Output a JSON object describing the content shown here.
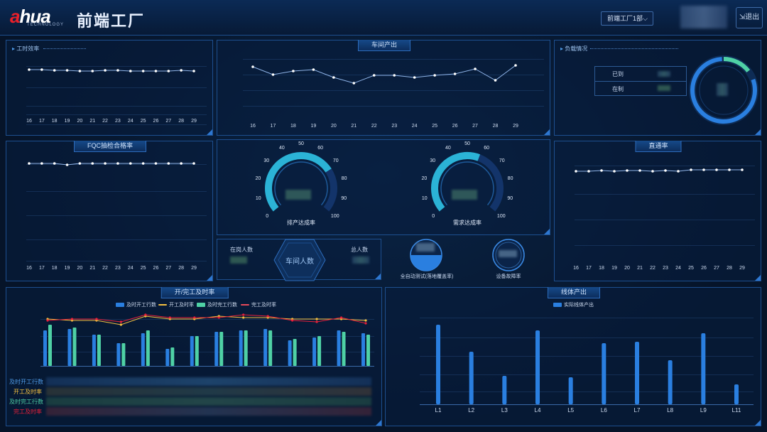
{
  "header": {
    "logo_a": "a",
    "logo_rest": "hua",
    "logo_sub": "TECHNOLOGY",
    "title": "前端工厂",
    "dept_select": "前端工厂1部",
    "logout": "退出"
  },
  "panels": {
    "efficiency": {
      "title": "工时效率",
      "days": [
        "16",
        "17",
        "18",
        "19",
        "20",
        "21",
        "22",
        "23",
        "24",
        "25",
        "26",
        "27",
        "28",
        "29"
      ]
    },
    "output": {
      "title": "车间产出",
      "days": [
        "16",
        "17",
        "18",
        "19",
        "20",
        "21",
        "22",
        "23",
        "24",
        "25",
        "26",
        "27",
        "28",
        "29"
      ]
    },
    "load": {
      "title": "负载情况",
      "arrived": "已到",
      "in_process": "在制"
    },
    "fqc": {
      "title": "FQC抽检合格率",
      "days": [
        "16",
        "17",
        "18",
        "19",
        "20",
        "21",
        "22",
        "23",
        "24",
        "25",
        "26",
        "27",
        "28",
        "29"
      ]
    },
    "gauges": {
      "ticks": [
        "0",
        "10",
        "20",
        "30",
        "40",
        "50",
        "60",
        "70",
        "80",
        "90",
        "100"
      ],
      "left_label": "排产达成率",
      "right_label": "需求达成率"
    },
    "staff": {
      "on_duty": "在岗人数",
      "center": "车间人数",
      "total": "总人数"
    },
    "rates": {
      "auto_test": "全自动测试(落地覆盖率)",
      "equip_fault": "设备故障率"
    },
    "straight": {
      "title": "直通率",
      "days": [
        "16",
        "17",
        "18",
        "19",
        "20",
        "21",
        "22",
        "23",
        "24",
        "25",
        "26",
        "27",
        "28",
        "29"
      ]
    },
    "open_close": {
      "title": "开/完工及时率",
      "legend": [
        "及时开工行数",
        "开工及时率",
        "及时完工行数",
        "完工及时率"
      ],
      "rows": [
        "及时开工行数",
        "开工及时率",
        "及时完工行数",
        "完工及时率"
      ]
    },
    "line_output": {
      "title": "线体产出",
      "legend": "实际线体产出",
      "lines": [
        "L1",
        "L2",
        "L3",
        "L4",
        "L5",
        "L6",
        "L7",
        "L8",
        "L9",
        "L11"
      ]
    }
  },
  "colors": {
    "accent": "#2a7fe0",
    "green": "#4fd1a5",
    "orange": "#f0a040",
    "red": "#e8203a",
    "yellow": "#f5c040"
  }
}
